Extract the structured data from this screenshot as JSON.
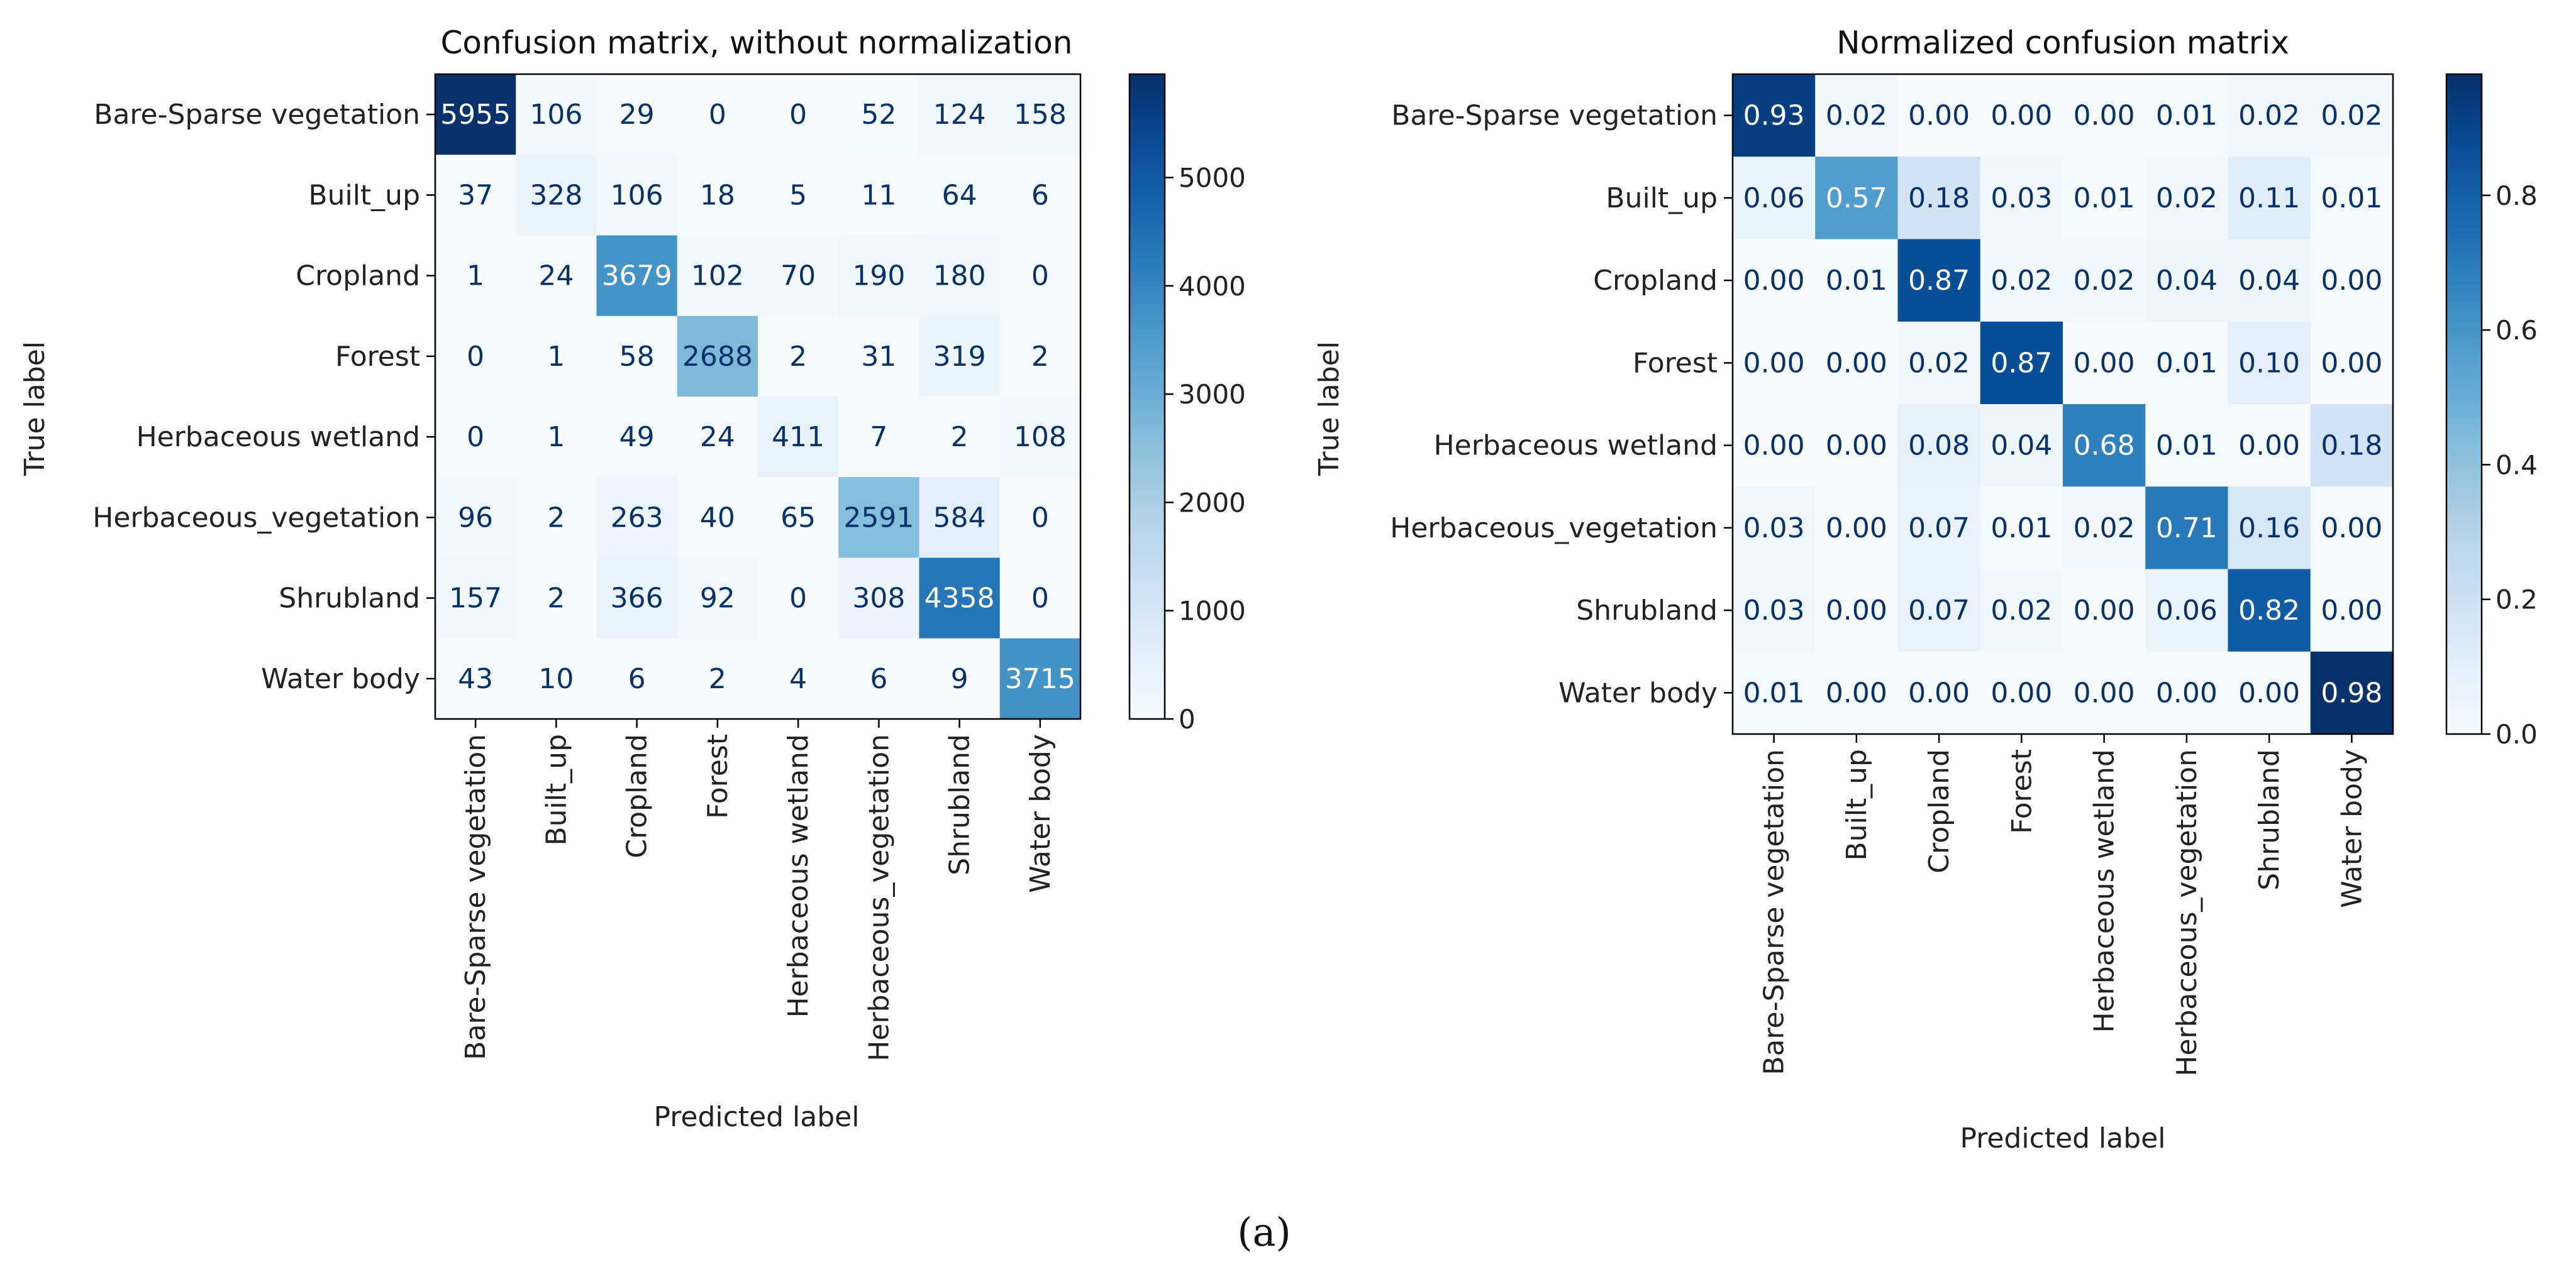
{
  "caption": "(a)",
  "chart_data": [
    {
      "type": "heatmap",
      "title": "Confusion matrix, without normalization",
      "xlabel": "Predicted label",
      "ylabel": "True label",
      "labels": [
        "Bare-Sparse vegetation",
        "Built_up",
        "Cropland",
        "Forest",
        "Herbaceous wetland",
        "Herbaceous_vegetation",
        "Shrubland",
        "Water body"
      ],
      "values": [
        [
          5955,
          106,
          29,
          0,
          0,
          52,
          124,
          158
        ],
        [
          37,
          328,
          106,
          18,
          5,
          11,
          64,
          6
        ],
        [
          1,
          24,
          3679,
          102,
          70,
          190,
          180,
          0
        ],
        [
          0,
          1,
          58,
          2688,
          2,
          31,
          319,
          2
        ],
        [
          0,
          1,
          49,
          24,
          411,
          7,
          2,
          108
        ],
        [
          96,
          2,
          263,
          40,
          65,
          2591,
          584,
          0
        ],
        [
          157,
          2,
          366,
          92,
          0,
          308,
          4358,
          0
        ],
        [
          43,
          10,
          6,
          2,
          4,
          6,
          9,
          3715
        ]
      ],
      "vmin": 0,
      "vmax": 5955,
      "colorbar_ticks": [
        0,
        1000,
        2000,
        3000,
        4000,
        5000
      ],
      "colorbar_tick_labels": [
        "0",
        "1000",
        "2000",
        "3000",
        "4000",
        "5000"
      ],
      "colormap": "Blues",
      "color_low": "#f7fbff",
      "color_high": "#08306b"
    },
    {
      "type": "heatmap",
      "title": "Normalized confusion matrix",
      "xlabel": "Predicted label",
      "ylabel": "True label",
      "labels": [
        "Bare-Sparse vegetation",
        "Built_up",
        "Cropland",
        "Forest",
        "Herbaceous wetland",
        "Herbaceous_vegetation",
        "Shrubland",
        "Water body"
      ],
      "values": [
        [
          0.93,
          0.02,
          0.0,
          0.0,
          0.0,
          0.01,
          0.02,
          0.02
        ],
        [
          0.06,
          0.57,
          0.18,
          0.03,
          0.01,
          0.02,
          0.11,
          0.01
        ],
        [
          0.0,
          0.01,
          0.87,
          0.02,
          0.02,
          0.04,
          0.04,
          0.0
        ],
        [
          0.0,
          0.0,
          0.02,
          0.87,
          0.0,
          0.01,
          0.1,
          0.0
        ],
        [
          0.0,
          0.0,
          0.08,
          0.04,
          0.68,
          0.01,
          0.0,
          0.18
        ],
        [
          0.03,
          0.0,
          0.07,
          0.01,
          0.02,
          0.71,
          0.16,
          0.0
        ],
        [
          0.03,
          0.0,
          0.07,
          0.02,
          0.0,
          0.06,
          0.82,
          0.0
        ],
        [
          0.01,
          0.0,
          0.0,
          0.0,
          0.0,
          0.0,
          0.0,
          0.98
        ]
      ],
      "value_format": "0.00",
      "vmin": 0.0,
      "vmax": 0.98,
      "colorbar_ticks": [
        0.0,
        0.2,
        0.4,
        0.6,
        0.8
      ],
      "colorbar_tick_labels": [
        "0.0",
        "0.2",
        "0.4",
        "0.6",
        "0.8"
      ],
      "colormap": "Blues",
      "color_low": "#f7fbff",
      "color_high": "#08306b"
    }
  ]
}
